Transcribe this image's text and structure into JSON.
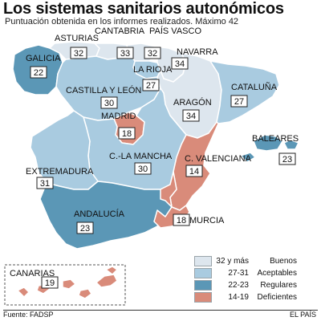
{
  "header": {
    "title": "Los sistemas sanitarios autonómicos",
    "subtitle": "Puntuación obtenida en los informes realizados. Máximo 42"
  },
  "categories": [
    {
      "key": "buenos",
      "range": "32 y más",
      "label": "Buenos",
      "color": "#dde6ee"
    },
    {
      "key": "aceptables",
      "range": "27-31",
      "label": "Aceptables",
      "color": "#a9cbe0"
    },
    {
      "key": "regulares",
      "range": "22-23",
      "label": "Regulares",
      "color": "#5b97b6"
    },
    {
      "key": "deficientes",
      "range": "14-19",
      "label": "Deficientes",
      "color": "#d98b7a"
    }
  ],
  "regions": [
    {
      "id": "galicia",
      "name": "GALICIA",
      "score": "22",
      "category": "regulares"
    },
    {
      "id": "asturias",
      "name": "ASTURIAS",
      "score": "32",
      "category": "buenos"
    },
    {
      "id": "cantabria",
      "name": "CANTABRIA",
      "score": "33",
      "category": "buenos"
    },
    {
      "id": "pais-vasco",
      "name": "PAÍS VASCO",
      "score": "32",
      "category": "buenos"
    },
    {
      "id": "navarra",
      "name": "NAVARRA",
      "score": "34",
      "category": "buenos"
    },
    {
      "id": "la-rioja",
      "name": "LA RIOJA",
      "score": "27",
      "category": "aceptables"
    },
    {
      "id": "castilla-y-leon",
      "name": "CASTILLA Y LEÓN",
      "score": "30",
      "category": "aceptables"
    },
    {
      "id": "aragon",
      "name": "ARAGÓN",
      "score": "34",
      "category": "buenos"
    },
    {
      "id": "cataluna",
      "name": "CATALUÑA",
      "score": "27",
      "category": "aceptables"
    },
    {
      "id": "madrid",
      "name": "MADRID",
      "score": "18",
      "category": "deficientes"
    },
    {
      "id": "castilla-la-mancha",
      "name": "C.-LA MANCHA",
      "score": "30",
      "category": "aceptables"
    },
    {
      "id": "c-valenciana",
      "name": "C. VALENCIANA",
      "score": "14",
      "category": "deficientes"
    },
    {
      "id": "baleares",
      "name": "BALEARES",
      "score": "23",
      "category": "regulares"
    },
    {
      "id": "extremadura",
      "name": "EXTREMADURA",
      "score": "31",
      "category": "aceptables"
    },
    {
      "id": "andalucia",
      "name": "ANDALUCÍA",
      "score": "23",
      "category": "regulares"
    },
    {
      "id": "murcia",
      "name": "MURCIA",
      "score": "18",
      "category": "deficientes"
    },
    {
      "id": "canarias",
      "name": "CANARIAS",
      "score": "19",
      "category": "deficientes"
    }
  ],
  "footer": {
    "source": "Fuente: FADSP",
    "credit": "EL PAÍS"
  }
}
